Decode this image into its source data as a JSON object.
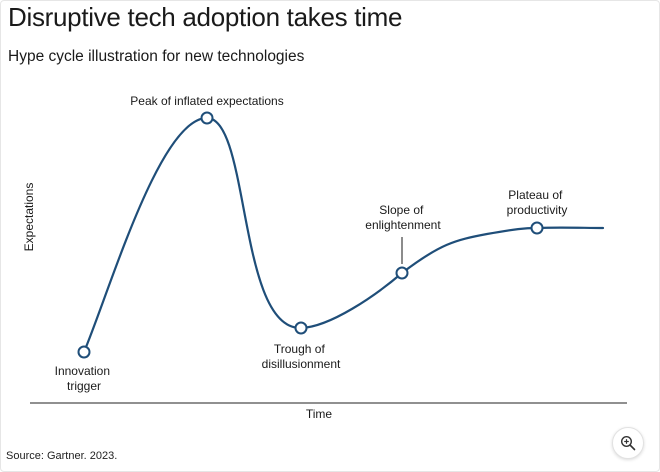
{
  "title": "Disruptive tech adoption takes time",
  "subtitle": "Hype cycle illustration for new technologies",
  "source": "Source: Gartner. 2023.",
  "axes": {
    "y_label": "Expectations",
    "x_label": "Time"
  },
  "stages": [
    {
      "id": "innovation-trigger",
      "lines": [
        "Innovation",
        "trigger"
      ]
    },
    {
      "id": "peak",
      "lines": [
        "Peak of inflated expectations"
      ]
    },
    {
      "id": "trough",
      "lines": [
        "Trough of",
        "disillusionment"
      ]
    },
    {
      "id": "slope",
      "lines": [
        "Slope of",
        "enlightenment"
      ]
    },
    {
      "id": "plateau",
      "lines": [
        "Plateau of",
        "productivity"
      ]
    }
  ],
  "colors": {
    "curve": "#1f4e79",
    "marker_fill": "#ffffff",
    "axis": "#4d4d4d",
    "text": "#1a1a1a"
  },
  "icons": {
    "zoom": "zoom-in-icon"
  }
}
